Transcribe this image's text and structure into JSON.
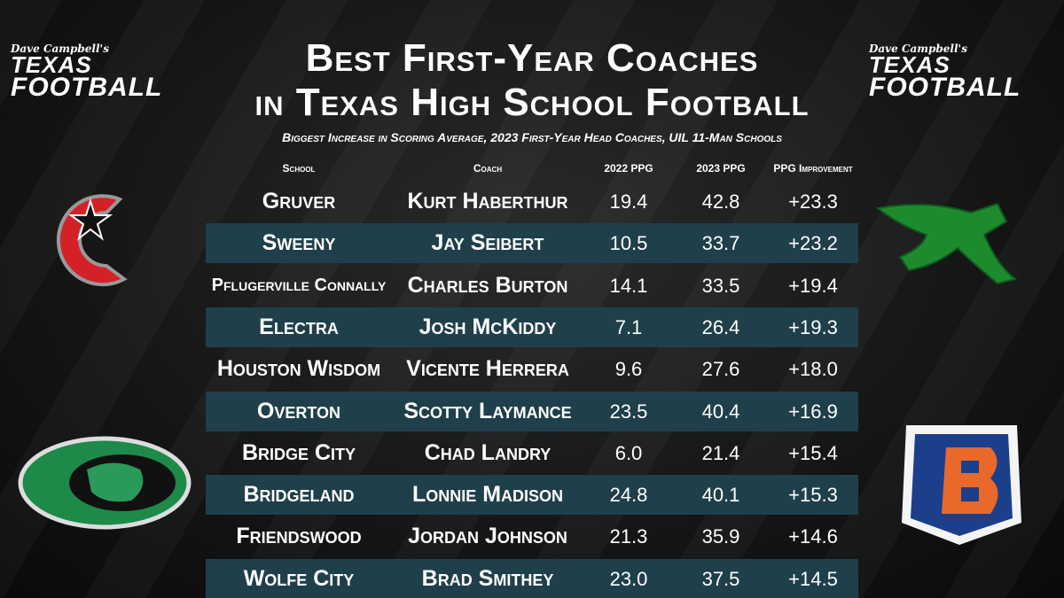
{
  "header": {
    "title": [
      "Best First-Year Coaches",
      "in Texas High School Football"
    ],
    "subtitle": "Biggest Increase in Scoring Average, 2023 First-Year Head Coaches, UIL 11-Man Schools",
    "brand": {
      "byline": "Dave Campbell's",
      "line1": "TEXAS",
      "line2": "FOOTBALL"
    }
  },
  "table": {
    "columns": [
      "School",
      "Coach",
      "2022 PPG",
      "2023 PPG",
      "PPG Improvement"
    ],
    "rows": [
      [
        "Gruver",
        "Kurt Haberthur",
        "19.4",
        "42.8",
        "+23.3"
      ],
      [
        "Sweeny",
        "Jay Seibert",
        "10.5",
        "33.7",
        "+23.2"
      ],
      [
        "Pflugerville Connally",
        "Charles Burton",
        "14.1",
        "33.5",
        "+19.4"
      ],
      [
        "Electra",
        "Josh McKiddy",
        "7.1",
        "26.4",
        "+19.3"
      ],
      [
        "Houston Wisdom",
        "Vicente Herrera",
        "9.6",
        "27.6",
        "+18.0"
      ],
      [
        "Overton",
        "Scotty Laymance",
        "23.5",
        "40.4",
        "+16.9"
      ],
      [
        "Bridge City",
        "Chad Landry",
        "6.0",
        "21.4",
        "+15.4"
      ],
      [
        "Bridgeland",
        "Lonnie Madison",
        "24.8",
        "40.1",
        "+15.3"
      ],
      [
        "Friendswood",
        "Jordan Johnson",
        "21.3",
        "35.9",
        "+14.6"
      ],
      [
        "Wolfe City",
        "Brad Smithey",
        "23.0",
        "37.5",
        "+14.5"
      ]
    ]
  }
}
